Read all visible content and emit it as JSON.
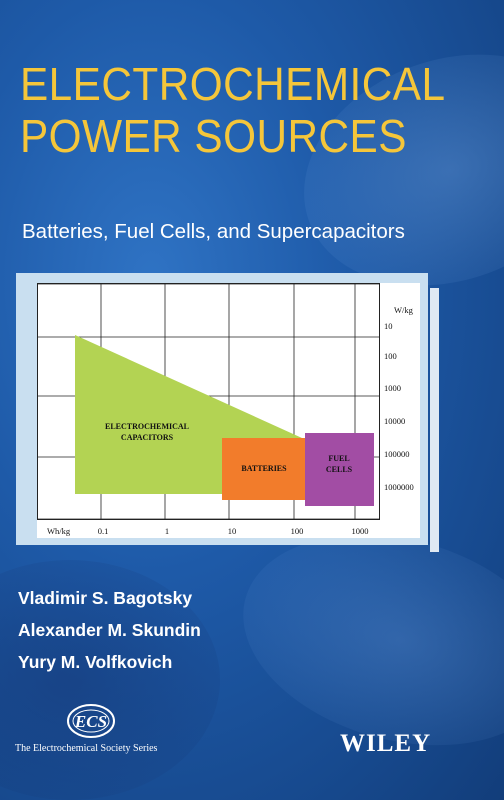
{
  "book": {
    "title_line1": "ELECTROCHEMICAL",
    "title_line2": "POWER SOURCES",
    "subtitle": "Batteries, Fuel Cells, and Supercapacitors",
    "authors": [
      "Vladimir S. Bagotsky",
      "Alexander M. Skundin",
      "Yury M. Volfkovich"
    ],
    "series": "The Electrochemical Society Series",
    "series_logo_text": "ECS",
    "publisher": "WILEY"
  },
  "colors": {
    "background": "#1e5aa8",
    "title": "#f5c63a",
    "capacitors": "#b3d353",
    "batteries": "#f27c2b",
    "fuel_cells": "#a24da4"
  },
  "chart_data": {
    "type": "area",
    "x_unit": "Wh/kg",
    "y_unit": "W/kg",
    "x_scale": "log",
    "y_scale": "log",
    "x_ticks": [
      "0.1",
      "1",
      "10",
      "100",
      "1000"
    ],
    "y_ticks": [
      "10",
      "100",
      "1000",
      "10000",
      "100000",
      "1000000"
    ],
    "grid": true,
    "regions": [
      {
        "label_lines": [
          "ELECTROCHEMICAL",
          "CAPACITORS"
        ],
        "color": "#b3d353"
      },
      {
        "label_lines": [
          "BATTERIES"
        ],
        "color": "#f27c2b"
      },
      {
        "label_lines": [
          "FUEL",
          "CELLS"
        ],
        "color": "#a24da4"
      }
    ]
  }
}
